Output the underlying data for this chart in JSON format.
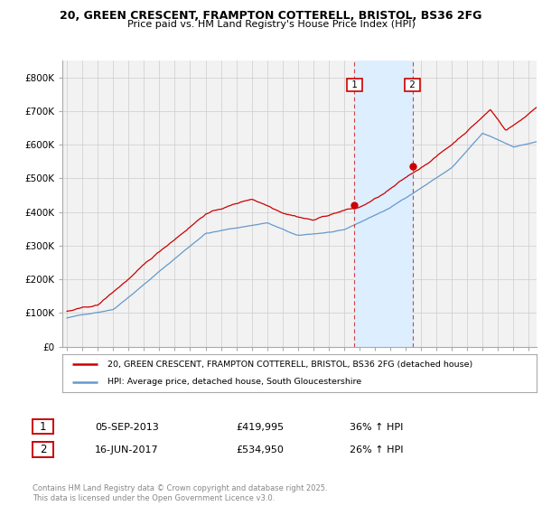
{
  "title1": "20, GREEN CRESCENT, FRAMPTON COTTERELL, BRISTOL, BS36 2FG",
  "title2": "Price paid vs. HM Land Registry's House Price Index (HPI)",
  "bg_color": "#ffffff",
  "plot_bg_color": "#f2f2f2",
  "red_color": "#cc0000",
  "blue_color": "#6699cc",
  "shade_color": "#ddeeff",
  "annotation1_date": "05-SEP-2013",
  "annotation1_price": "£419,995",
  "annotation1_hpi": "36% ↑ HPI",
  "annotation2_date": "16-JUN-2017",
  "annotation2_price": "£534,950",
  "annotation2_hpi": "26% ↑ HPI",
  "legend1": "20, GREEN CRESCENT, FRAMPTON COTTERELL, BRISTOL, BS36 2FG (detached house)",
  "legend2": "HPI: Average price, detached house, South Gloucestershire",
  "footnote": "Contains HM Land Registry data © Crown copyright and database right 2025.\nThis data is licensed under the Open Government Licence v3.0.",
  "ylim_max": 850000,
  "yticks": [
    0,
    100000,
    200000,
    300000,
    400000,
    500000,
    600000,
    700000,
    800000
  ],
  "ytick_labels": [
    "£0",
    "£100K",
    "£200K",
    "£300K",
    "£400K",
    "£500K",
    "£600K",
    "£700K",
    "£800K"
  ],
  "marker1_x": 2013.67,
  "marker1_y": 419995,
  "marker2_x": 2017.45,
  "marker2_y": 534950,
  "vline1_x": 2013.67,
  "vline2_x": 2017.45,
  "xmin": 1994.7,
  "xmax": 2025.5,
  "noise_seed": 42
}
